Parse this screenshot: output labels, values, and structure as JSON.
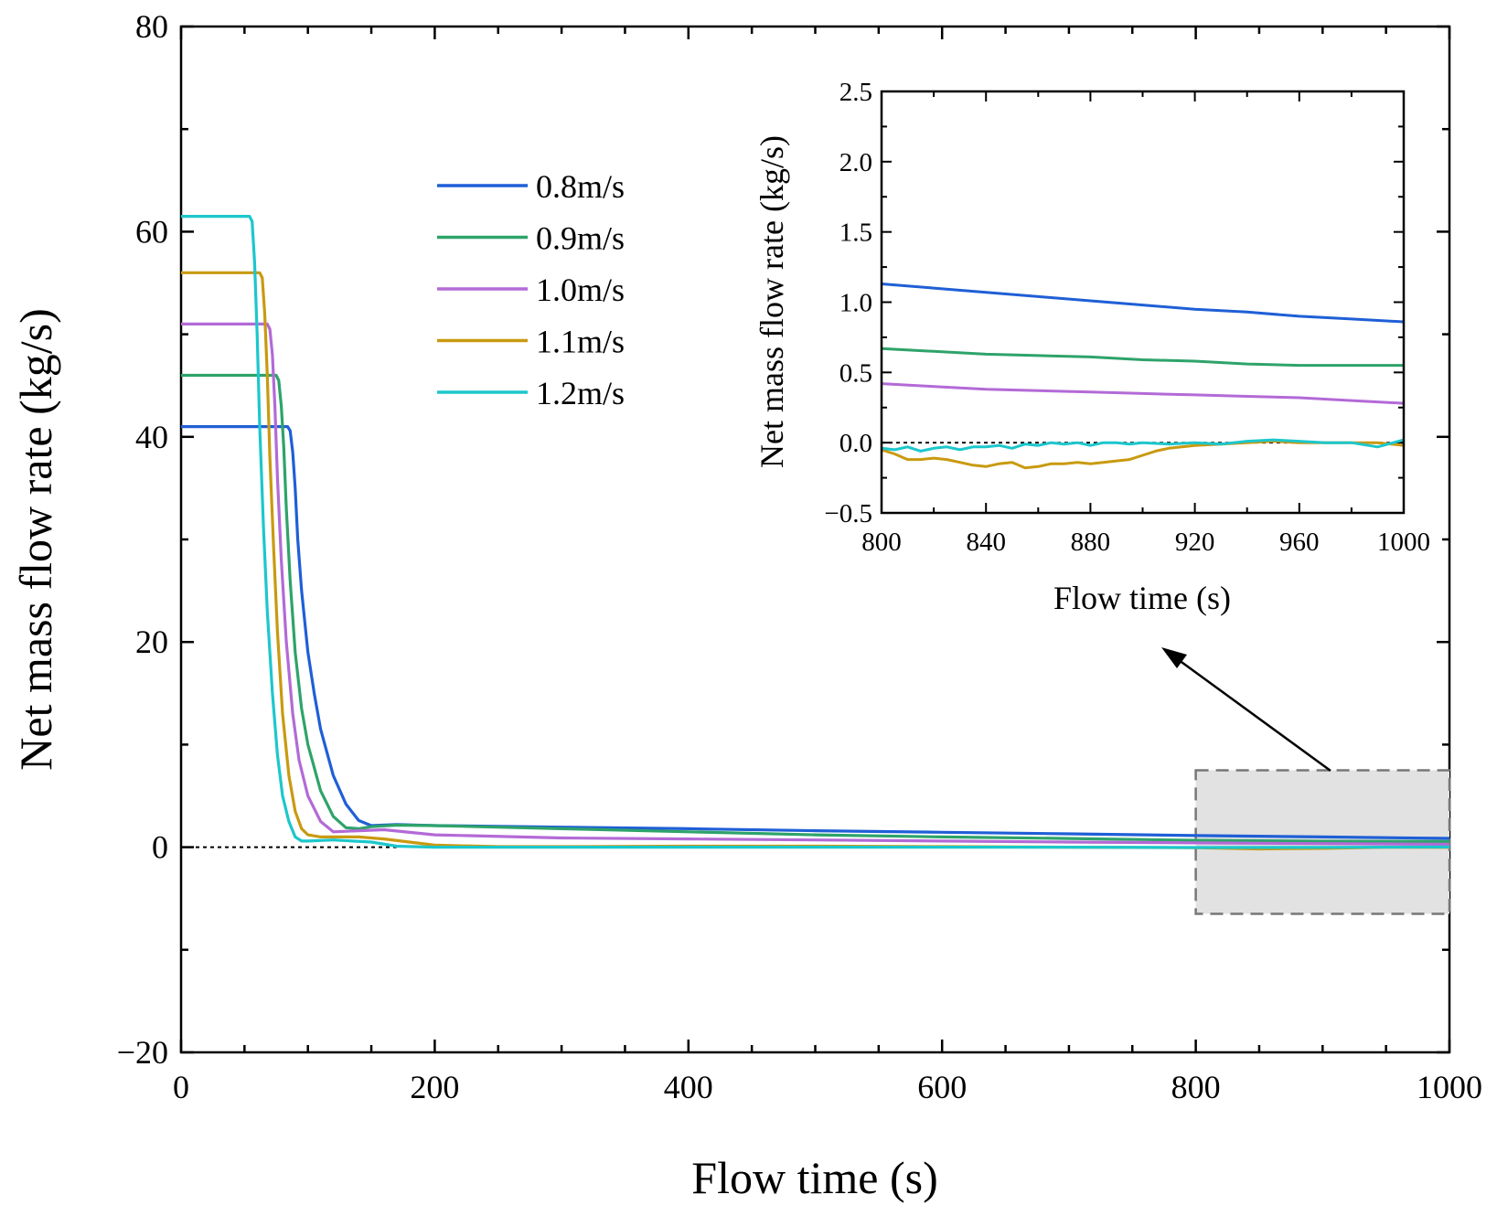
{
  "chart_data": {
    "type": "line",
    "xlabel": "Flow time (s)",
    "ylabel": "Net mass flow rate (kg/s)",
    "xlim": [
      0,
      1000
    ],
    "ylim": [
      -20,
      80
    ],
    "xticks": [
      0,
      200,
      400,
      600,
      800,
      1000
    ],
    "yticks": [
      -20,
      0,
      20,
      40,
      60,
      80
    ],
    "xtick_labels": [
      "0",
      "200",
      "400",
      "600",
      "800",
      "1000"
    ],
    "ytick_labels": [
      "−20",
      "0",
      "20",
      "40",
      "60",
      "80"
    ],
    "legend_position": "upper-middle",
    "reference_line": {
      "y": 0,
      "style": "dotted",
      "x_range": [
        0,
        170
      ]
    },
    "highlight_region": {
      "x": [
        800,
        1000
      ],
      "y": [
        -6.5,
        7.5
      ]
    },
    "series": [
      {
        "name": "0.8m/s",
        "color": "#1f5fd6",
        "x": [
          0,
          84,
          86,
          88,
          90,
          92,
          95,
          100,
          105,
          110,
          120,
          130,
          140,
          150,
          170,
          200,
          300,
          400,
          500,
          600,
          700,
          800,
          900,
          1000
        ],
        "y": [
          41,
          41,
          40.6,
          38.5,
          35,
          30,
          25,
          19,
          15,
          11.5,
          7,
          4.2,
          2.6,
          2.1,
          2.2,
          2.1,
          1.95,
          1.8,
          1.6,
          1.45,
          1.3,
          1.13,
          1.0,
          0.86
        ]
      },
      {
        "name": "0.9m/s",
        "color": "#2ea36a",
        "x": [
          0,
          75,
          77,
          79,
          81,
          83,
          86,
          90,
          95,
          100,
          110,
          120,
          130,
          140,
          150,
          170,
          200,
          300,
          400,
          500,
          600,
          700,
          800,
          900,
          1000
        ],
        "y": [
          46,
          46,
          45.5,
          43,
          39,
          33,
          26,
          19,
          13.5,
          10,
          5.5,
          3,
          1.9,
          1.8,
          2.0,
          2.15,
          2.1,
          1.8,
          1.5,
          1.2,
          1.0,
          0.85,
          0.67,
          0.58,
          0.55
        ]
      },
      {
        "name": "1.0m/s",
        "color": "#b36ad6",
        "x": [
          0,
          68,
          70,
          72,
          74,
          76,
          79,
          83,
          88,
          93,
          100,
          110,
          120,
          140,
          160,
          200,
          300,
          400,
          500,
          600,
          700,
          800,
          900,
          1000
        ],
        "y": [
          51,
          51,
          50.5,
          48,
          43,
          36,
          28,
          20,
          13,
          8.5,
          5,
          2.5,
          1.5,
          1.6,
          1.7,
          1.2,
          0.9,
          0.8,
          0.7,
          0.6,
          0.5,
          0.42,
          0.35,
          0.28
        ]
      },
      {
        "name": "1.1m/s",
        "color": "#c99a10",
        "x": [
          0,
          62,
          64,
          66,
          68,
          70,
          73,
          76,
          80,
          85,
          90,
          95,
          100,
          110,
          120,
          140,
          160,
          180,
          200,
          250,
          300,
          400,
          500,
          600,
          700,
          800,
          850,
          900,
          950,
          1000
        ],
        "y": [
          56,
          56,
          55.5,
          52,
          46,
          38,
          29,
          21,
          13,
          7,
          3.5,
          1.8,
          1.2,
          1.0,
          1.0,
          1.0,
          0.8,
          0.5,
          0.2,
          0.05,
          0.05,
          0.1,
          0.1,
          0.05,
          0.0,
          -0.05,
          -0.17,
          -0.12,
          0.0,
          -0.02
        ]
      },
      {
        "name": "1.2m/s",
        "color": "#1cc7cc",
        "x": [
          0,
          54,
          56,
          58,
          60,
          62,
          65,
          68,
          72,
          76,
          80,
          85,
          90,
          95,
          100,
          120,
          150,
          170,
          200,
          300,
          400,
          500,
          600,
          700,
          800,
          900,
          1000
        ],
        "y": [
          61.5,
          61.5,
          61,
          57,
          50,
          41,
          31,
          23,
          15,
          9,
          5,
          2.5,
          1.0,
          0.6,
          0.6,
          0.7,
          0.5,
          0.1,
          0.0,
          0.0,
          0.0,
          0.0,
          0.0,
          0.0,
          -0.04,
          -0.02,
          0.02
        ]
      }
    ],
    "inset": {
      "xlabel": "Flow time (s)",
      "ylabel": "Net mass flow rate (kg/s)",
      "xlim": [
        800,
        1000
      ],
      "ylim": [
        -0.5,
        2.5
      ],
      "xticks": [
        800,
        840,
        880,
        920,
        960,
        1000
      ],
      "yticks": [
        -0.5,
        0.0,
        0.5,
        1.0,
        1.5,
        2.0,
        2.5
      ],
      "xtick_labels": [
        "800",
        "840",
        "880",
        "920",
        "960",
        "1000"
      ],
      "ytick_labels": [
        "−0.5",
        "0.0",
        "0.5",
        "1.0",
        "1.5",
        "2.0",
        "2.5"
      ],
      "reference_line": {
        "y": 0,
        "style": "dotted"
      },
      "series": [
        {
          "name": "0.8m/s",
          "color": "#1f5fd6",
          "x": [
            800,
            820,
            840,
            860,
            880,
            900,
            920,
            940,
            960,
            980,
            1000
          ],
          "y": [
            1.13,
            1.1,
            1.07,
            1.04,
            1.01,
            0.98,
            0.95,
            0.93,
            0.9,
            0.88,
            0.86
          ]
        },
        {
          "name": "0.9m/s",
          "color": "#2ea36a",
          "x": [
            800,
            820,
            840,
            860,
            880,
            900,
            920,
            940,
            960,
            980,
            1000
          ],
          "y": [
            0.67,
            0.65,
            0.63,
            0.62,
            0.61,
            0.59,
            0.58,
            0.56,
            0.55,
            0.55,
            0.55
          ]
        },
        {
          "name": "1.0m/s",
          "color": "#b36ad6",
          "x": [
            800,
            820,
            840,
            860,
            880,
            900,
            920,
            940,
            960,
            980,
            1000
          ],
          "y": [
            0.42,
            0.4,
            0.38,
            0.37,
            0.36,
            0.35,
            0.34,
            0.33,
            0.32,
            0.3,
            0.28
          ]
        },
        {
          "name": "1.1m/s",
          "color": "#c99a10",
          "x": [
            800,
            805,
            810,
            815,
            820,
            825,
            830,
            835,
            840,
            845,
            850,
            855,
            860,
            865,
            870,
            875,
            880,
            885,
            890,
            895,
            900,
            905,
            910,
            915,
            920,
            930,
            940,
            950,
            960,
            970,
            980,
            990,
            1000
          ],
          "y": [
            -0.05,
            -0.08,
            -0.12,
            -0.12,
            -0.11,
            -0.12,
            -0.14,
            -0.16,
            -0.17,
            -0.15,
            -0.14,
            -0.18,
            -0.17,
            -0.15,
            -0.15,
            -0.14,
            -0.15,
            -0.14,
            -0.13,
            -0.12,
            -0.09,
            -0.06,
            -0.04,
            -0.03,
            -0.02,
            -0.01,
            0.0,
            0.01,
            0.0,
            0.0,
            0.0,
            0.0,
            -0.02
          ]
        },
        {
          "name": "1.2m/s",
          "color": "#1cc7cc",
          "x": [
            800,
            805,
            810,
            815,
            820,
            825,
            830,
            835,
            840,
            845,
            850,
            855,
            860,
            865,
            870,
            875,
            880,
            885,
            890,
            895,
            900,
            910,
            920,
            930,
            940,
            950,
            960,
            970,
            980,
            990,
            1000
          ],
          "y": [
            -0.04,
            -0.05,
            -0.03,
            -0.06,
            -0.04,
            -0.03,
            -0.05,
            -0.03,
            -0.03,
            -0.02,
            -0.04,
            -0.01,
            -0.02,
            0.0,
            -0.01,
            0.0,
            -0.02,
            0.0,
            0.0,
            -0.01,
            0.0,
            -0.01,
            0.0,
            -0.01,
            0.01,
            0.02,
            0.01,
            0.0,
            0.0,
            -0.03,
            0.02
          ]
        }
      ]
    }
  }
}
